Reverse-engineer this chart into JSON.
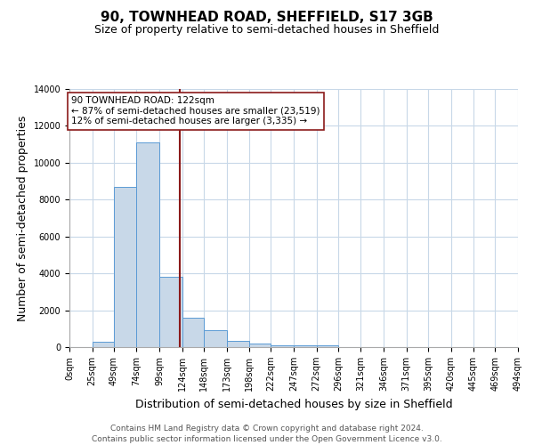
{
  "title": "90, TOWNHEAD ROAD, SHEFFIELD, S17 3GB",
  "subtitle": "Size of property relative to semi-detached houses in Sheffield",
  "xlabel": "Distribution of semi-detached houses by size in Sheffield",
  "ylabel": "Number of semi-detached properties",
  "footnote": "Contains HM Land Registry data © Crown copyright and database right 2024.\nContains public sector information licensed under the Open Government Licence v3.0.",
  "bin_edges": [
    0,
    25,
    49,
    74,
    99,
    124,
    148,
    173,
    198,
    222,
    247,
    272,
    296,
    321,
    346,
    371,
    395,
    420,
    445,
    469,
    494
  ],
  "bin_labels": [
    "0sqm",
    "25sqm",
    "49sqm",
    "74sqm",
    "99sqm",
    "124sqm",
    "148sqm",
    "173sqm",
    "198sqm",
    "222sqm",
    "247sqm",
    "272sqm",
    "296sqm",
    "321sqm",
    "346sqm",
    "371sqm",
    "395sqm",
    "420sqm",
    "445sqm",
    "469sqm",
    "494sqm"
  ],
  "counts": [
    0,
    300,
    8700,
    11100,
    3800,
    1600,
    900,
    350,
    200,
    100,
    100,
    100,
    0,
    0,
    0,
    0,
    0,
    0,
    0,
    0
  ],
  "bar_color": "#c8d8e8",
  "bar_edge_color": "#5b9bd5",
  "property_line_x": 122,
  "property_line_color": "#8b1a1a",
  "annotation_text": "90 TOWNHEAD ROAD: 122sqm\n← 87% of semi-detached houses are smaller (23,519)\n12% of semi-detached houses are larger (3,335) →",
  "annotation_box_color": "#ffffff",
  "annotation_box_edge_color": "#8b1a1a",
  "ylim": [
    0,
    14000
  ],
  "yticks": [
    0,
    2000,
    4000,
    6000,
    8000,
    10000,
    12000,
    14000
  ],
  "background_color": "#ffffff",
  "grid_color": "#c8d8e8",
  "title_fontsize": 11,
  "subtitle_fontsize": 9,
  "axis_label_fontsize": 9,
  "tick_fontsize": 7,
  "annotation_fontsize": 7.5,
  "footnote_fontsize": 6.5
}
